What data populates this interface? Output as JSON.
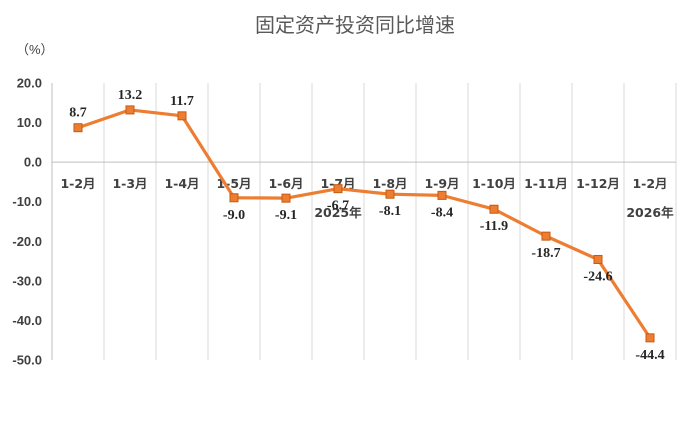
{
  "chart_data": {
    "type": "line",
    "title": "固定资产投资同比增速",
    "unit_label": "（%）",
    "categories": [
      "1-2月",
      "1-3月",
      "1-4月",
      "1-5月",
      "1-6月",
      "1-7月",
      "1-8月",
      "1-9月",
      "1-10月",
      "1-11月",
      "1-12月",
      "1-2月"
    ],
    "values": [
      8.7,
      13.2,
      11.7,
      -9.0,
      -9.1,
      -6.7,
      -8.1,
      -8.4,
      -11.9,
      -18.7,
      -24.6,
      -44.4
    ],
    "value_labels": [
      "8.7",
      "13.2",
      "11.7",
      "-9.0",
      "-9.1",
      "-6.7",
      "-8.1",
      "-8.4",
      "-11.9",
      "-18.7",
      "-24.6",
      "-44.4"
    ],
    "year_labels": [
      {
        "text": "2025年",
        "category_index": 5
      },
      {
        "text": "2026年",
        "category_index": 11
      }
    ],
    "ylim": [
      -50,
      20
    ],
    "yticks": [
      20,
      10,
      0,
      -10,
      -20,
      -30,
      -40,
      -50
    ],
    "ytick_labels": [
      "20.0",
      "10.0",
      "0.0",
      "-10.0",
      "-20.0",
      "-30.0",
      "-40.0",
      "-50.0"
    ],
    "grid": "vertical",
    "line_color": "#ed7d31",
    "marker_color": "#ed7d31",
    "marker_edge_color": "#c55a11"
  }
}
